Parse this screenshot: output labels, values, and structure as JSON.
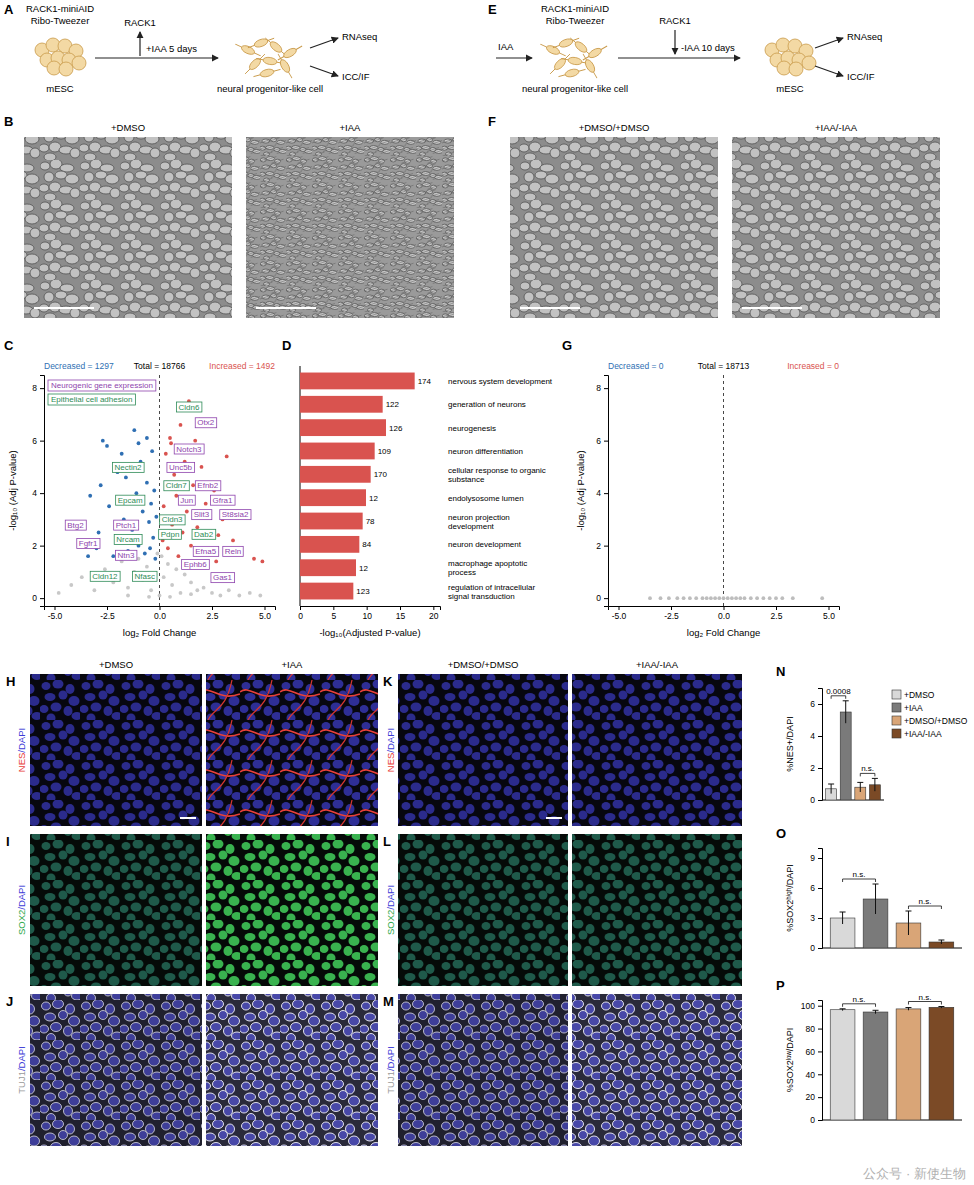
{
  "figure": {
    "panel_letters": [
      "A",
      "B",
      "C",
      "D",
      "E",
      "F",
      "G",
      "H",
      "I",
      "J",
      "K",
      "L",
      "M",
      "N",
      "O",
      "P"
    ],
    "schematic_A": {
      "construct": [
        "RACK1-miniAID",
        "Ribo-Tweezer"
      ],
      "protein": "RACK1",
      "treatment": "+IAA 5 days",
      "start": "mESC",
      "end": "neural progenitor-like cell",
      "outputs": [
        "RNAseq",
        "ICC/IF"
      ]
    },
    "schematic_E": {
      "construct": [
        "RACK1-miniAID",
        "Ribo-Tweezer"
      ],
      "protein": "RACK1",
      "pre_treatment": "IAA",
      "treatment": "-IAA 10 days",
      "start": "neural progenitor-like cell",
      "end": "mESC",
      "outputs": [
        "RNAseq",
        "ICC/IF"
      ]
    },
    "brightfield_B": [
      "+DMSO",
      "+IAA"
    ],
    "brightfield_F": [
      "+DMSO/+DMSO",
      "+IAA/-IAA"
    ],
    "fluorescence_HIJ": [
      "+DMSO",
      "+IAA"
    ],
    "fluorescence_KLM": [
      "+DMSO/+DMSO",
      "+IAA/-IAA"
    ],
    "stains": [
      {
        "marker": "NES",
        "marker_color": "#e8403a",
        "rest": "/DAPI",
        "rest_color": "#3b3bd6"
      },
      {
        "marker": "SOX2",
        "marker_color": "#2fa84a",
        "rest": "/DAPI",
        "rest_color": "#3b3bd6"
      },
      {
        "marker": "TUJ1",
        "marker_color": "#9a9a9a",
        "rest": "/DAPI",
        "rest_color": "#3b3bd6"
      }
    ],
    "watermark": "公众号 · 新使生物"
  },
  "chart_data": [
    {
      "type": "scatter",
      "x_label": "log₂ Fold Change",
      "y_label": "-log₁₀ (Adj P-value)",
      "xlim": [
        -5.5,
        5.5
      ],
      "xticks": [
        {
          "value": -5,
          "label": "-5.0"
        },
        {
          "value": -2.5,
          "label": "-2.5"
        },
        {
          "value": 0,
          "label": "0.0"
        },
        {
          "value": 2.5,
          "label": "2.5"
        },
        {
          "value": 5,
          "label": "5.0"
        }
      ],
      "ylim": [
        -0.3,
        8.5
      ],
      "yticks": [
        0,
        2,
        4,
        6,
        8
      ],
      "reference_line_x": 0,
      "annotations": [
        {
          "text": "Decreased = 1297",
          "color": "#2f6fb3"
        },
        {
          "text": "Total = 18766",
          "color": "#000000"
        },
        {
          "text": "Increased = 1492",
          "color": "#d9534f"
        }
      ],
      "gene_sets": [
        {
          "name": "Neurogenic gene expression",
          "color": "#8e44ad"
        },
        {
          "name": "Epithelial cell adhesion",
          "color": "#2e8b57"
        }
      ],
      "series": [
        {
          "color": "#c8c8c8",
          "marker": "circle",
          "x": [
            -4.8,
            -4.2,
            -3.7,
            -3.1,
            -2.6,
            -2.2,
            -1.8,
            -1.5,
            -1.2,
            -1.0,
            -0.8,
            -0.6,
            -0.4,
            -0.2,
            0,
            0.2,
            0.4,
            0.6,
            0.8,
            1.0,
            1.2,
            1.5,
            1.8,
            2.1,
            2.5,
            2.9,
            3.3,
            3.8,
            4.3,
            4.8,
            -0.5,
            0.5,
            -1.5,
            1.5,
            0.1,
            -0.1
          ],
          "values": [
            0.2,
            0.5,
            0.8,
            0.3,
            1.1,
            0.6,
            1.4,
            0.4,
            1.0,
            1.5,
            0.7,
            1.2,
            0.3,
            0.9,
            0.1,
            0.8,
            1.3,
            0.5,
            1.1,
            0.2,
            0.9,
            0.6,
            0.3,
            0.4,
            0.2,
            0.1,
            0.3,
            0.1,
            0.2,
            0.1,
            0.05,
            0.05,
            0.1,
            0.15,
            1.6,
            1.7
          ]
        },
        {
          "color": "#2f6fb3",
          "marker": "circle",
          "x": [
            -3.6,
            -3.3,
            -3.0,
            -2.9,
            -2.7,
            -2.5,
            -2.4,
            -2.2,
            -2.0,
            -1.9,
            -1.8,
            -1.7,
            -1.6,
            -1.5,
            -1.4,
            -1.3,
            -1.2,
            -1.1,
            -1.0,
            -0.9,
            -0.8,
            -0.7,
            -0.6,
            -0.5,
            -0.4,
            -0.35,
            -0.3,
            -0.25,
            -0.2,
            -0.15,
            -3.4,
            -2.8,
            -1.0,
            -0.6,
            -0.45
          ],
          "values": [
            2.1,
            3.9,
            1.9,
            2.5,
            6.0,
            5.8,
            3.5,
            1.6,
            4.8,
            2.2,
            5.5,
            3.0,
            4.6,
            1.8,
            3.8,
            2.6,
            6.4,
            4.0,
            2.0,
            5.2,
            3.3,
            1.7,
            4.4,
            2.9,
            3.6,
            5.6,
            2.3,
            4.1,
            1.5,
            3.1,
            1.6,
            4.3,
            5.9,
            6.1,
            1.9
          ]
        },
        {
          "color": "#d9534f",
          "marker": "circle",
          "x": [
            0.15,
            0.2,
            0.3,
            0.4,
            0.5,
            0.6,
            0.7,
            0.8,
            0.9,
            1.0,
            1.1,
            1.2,
            1.3,
            1.4,
            1.5,
            1.6,
            1.7,
            1.8,
            2.0,
            2.2,
            2.4,
            2.6,
            2.8,
            3.0,
            3.2,
            3.5,
            3.8,
            4.1,
            4.5,
            4.9,
            0.35,
            0.55,
            1.05,
            1.9,
            2.7
          ],
          "values": [
            2.2,
            3.5,
            5.5,
            1.9,
            6.1,
            2.8,
            4.7,
            3.9,
            1.6,
            6.6,
            2.5,
            5.2,
            3.3,
            7.5,
            2.0,
            4.3,
            6.0,
            2.7,
            5.0,
            3.6,
            1.8,
            4.1,
            2.4,
            3.0,
            5.4,
            2.2,
            1.7,
            3.2,
            1.5,
            1.4,
            4.4,
            5.9,
            3.0,
            6.8,
            1.4
          ]
        }
      ],
      "labeled_points": {
        "labels": [
          "Cldn6",
          "Otx2",
          "Notch3",
          "Unc5b",
          "Nectin2",
          "Cldn7",
          "Efnb2",
          "Epcam",
          "Jun",
          "Gfra1",
          "Slit3",
          "St8sia2",
          "Cldn3",
          "Btg2",
          "Ptch1",
          "Pdpn",
          "Dab2",
          "Fgfr1",
          "Nrcam",
          "Efna5",
          "Reln",
          "Ntn3",
          "Ephb6",
          "Cldn12",
          "Nfasc",
          "Gas1"
        ],
        "x": [
          1.4,
          2.2,
          1.4,
          1.0,
          -1.5,
          0.8,
          2.3,
          -1.4,
          1.3,
          3.0,
          2.0,
          3.6,
          0.6,
          -4.0,
          -1.6,
          0.5,
          2.1,
          -3.4,
          -1.5,
          2.2,
          3.5,
          -1.6,
          1.7,
          -2.6,
          -0.7,
          3.0
        ],
        "values": [
          7.3,
          6.7,
          5.7,
          5.0,
          5.0,
          4.3,
          4.3,
          3.75,
          3.75,
          3.75,
          3.2,
          3.2,
          3.0,
          2.8,
          2.8,
          2.45,
          2.45,
          2.1,
          2.25,
          1.8,
          1.8,
          1.65,
          1.3,
          0.85,
          0.85,
          0.8
        ],
        "gene_set": [
          1,
          0,
          0,
          0,
          1,
          1,
          0,
          1,
          0,
          0,
          0,
          0,
          1,
          0,
          0,
          1,
          1,
          0,
          1,
          0,
          0,
          0,
          0,
          1,
          1,
          0
        ]
      }
    },
    {
      "type": "bar",
      "orientation": "horizontal",
      "categories": [
        "nervous system development",
        "generation of neurons",
        "neurogenesis",
        "neuron differentiation",
        "cellular response to organic substance",
        "endolysosome lumen",
        "neuron projection development",
        "neuron development",
        "macrophage apoptotic process",
        "regulation of intracellular signal transduction"
      ],
      "values": [
        17.2,
        12.4,
        12.9,
        11.2,
        10.6,
        9.9,
        9.4,
        8.9,
        8.4,
        8.0
      ],
      "counts": [
        174,
        122,
        126,
        109,
        170,
        12,
        78,
        84,
        12,
        123
      ],
      "color": "#d9534f",
      "x_label": "-log₁₀(Adjusted P-value)",
      "xlim": [
        0,
        21
      ],
      "xticks": [
        0,
        5,
        10,
        15,
        20
      ]
    },
    {
      "type": "scatter",
      "x_label": "log₂ Fold Change",
      "y_label": "-log₁₀ (Adj P-value)",
      "xlim": [
        -5.5,
        5.5
      ],
      "xticks": [
        {
          "value": -5,
          "label": "-5.0"
        },
        {
          "value": -2.5,
          "label": "-2.5"
        },
        {
          "value": 0,
          "label": "0.0"
        },
        {
          "value": 2.5,
          "label": "2.5"
        },
        {
          "value": 5,
          "label": "5.0"
        }
      ],
      "ylim": [
        -0.3,
        8.5
      ],
      "yticks": [
        0,
        2,
        4,
        6,
        8
      ],
      "reference_line_x": 0,
      "annotations": [
        {
          "text": "Decreased = 0",
          "color": "#2f6fb3"
        },
        {
          "text": "Total = 18713",
          "color": "#000000"
        },
        {
          "text": "Increased = 0",
          "color": "#d9534f"
        }
      ],
      "series": [
        {
          "color": "#bdbdbd",
          "marker": "circle",
          "x": [
            -3.5,
            -3.0,
            -2.6,
            -2.2,
            -1.9,
            -1.6,
            -1.3,
            -1.0,
            -0.8,
            -0.6,
            -0.4,
            -0.2,
            0,
            0.2,
            0.4,
            0.6,
            0.8,
            1.0,
            1.3,
            1.6,
            1.9,
            2.2,
            2.5,
            2.8,
            3.3,
            4.7
          ],
          "values": [
            0,
            0,
            0,
            0,
            0,
            0,
            0,
            0,
            0,
            0,
            0,
            0,
            0,
            0,
            0,
            0,
            0,
            0,
            0,
            0,
            0,
            0,
            0,
            0,
            0,
            0
          ]
        }
      ]
    },
    {
      "type": "bar",
      "categories": [
        "+DMSO",
        "+IAA",
        "+DMSO/+DMSO",
        "+IAA/-IAA"
      ],
      "values": [
        0.7,
        5.5,
        0.8,
        0.95
      ],
      "errors": [
        0.3,
        0.7,
        0.3,
        0.4
      ],
      "colors": [
        "#d9d9d9",
        "#7a7a7a",
        "#d9a577",
        "#7b4a26"
      ],
      "y_label": "%NES+/DAPI",
      "ylim": [
        0,
        7
      ],
      "yticks": [
        0,
        2,
        4,
        6
      ],
      "tick_labels": "y",
      "legend": "right",
      "comparisons": [
        {
          "pair": [
            0,
            1
          ],
          "label": "0.0008"
        },
        {
          "pair": [
            2,
            3
          ],
          "label": "n.s."
        }
      ]
    },
    {
      "type": "bar",
      "categories": [
        null,
        null,
        null,
        null
      ],
      "values": [
        3.0,
        4.9,
        2.5,
        0.6
      ],
      "errors": [
        0.6,
        1.5,
        1.2,
        0.2
      ],
      "colors": [
        "#d9d9d9",
        "#7a7a7a",
        "#d9a577",
        "#7b4a26"
      ],
      "y_label": "%SOX2ʰⁱᵍʰ/DAPI",
      "ylim": [
        0,
        10
      ],
      "yticks": [
        0,
        3,
        6,
        9
      ],
      "tick_labels": "y",
      "comparisons": [
        {
          "pair": [
            0,
            1
          ],
          "label": "n.s."
        },
        {
          "pair": [
            2,
            3
          ],
          "label": "n.s."
        }
      ]
    },
    {
      "type": "bar",
      "categories": [
        null,
        null,
        null,
        null
      ],
      "values": [
        96.5,
        94.5,
        97.2,
        98.6
      ],
      "errors": [
        0.8,
        1.5,
        1.2,
        0.7
      ],
      "colors": [
        "#d9d9d9",
        "#7a7a7a",
        "#d9a577",
        "#7b4a26"
      ],
      "y_label": "%SOX2ˡᵒʷ/DAPI",
      "ylim": [
        0,
        105
      ],
      "yticks": [
        0,
        20,
        40,
        60,
        80,
        100
      ],
      "tick_labels": "y",
      "comparisons": [
        {
          "pair": [
            0,
            1
          ],
          "label": "n.s."
        },
        {
          "pair": [
            2,
            3
          ],
          "label": "n.s."
        }
      ]
    }
  ]
}
